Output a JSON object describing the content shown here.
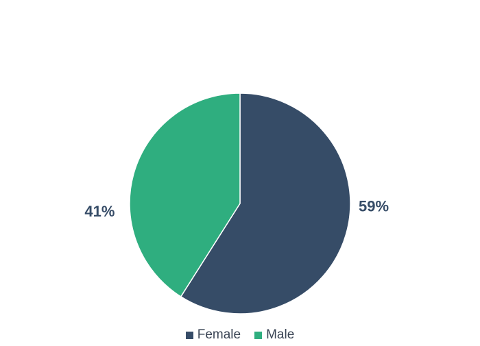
{
  "chart_data": {
    "type": "pie",
    "categories": [
      "Female",
      "Male"
    ],
    "values": [
      59,
      41
    ],
    "value_labels": [
      "59%",
      "41%"
    ],
    "colors": [
      "#364c67",
      "#2fae7f"
    ],
    "label_color": "#364c67",
    "start_angle_deg": 0,
    "direction": "clockwise",
    "legend_position": "bottom"
  }
}
